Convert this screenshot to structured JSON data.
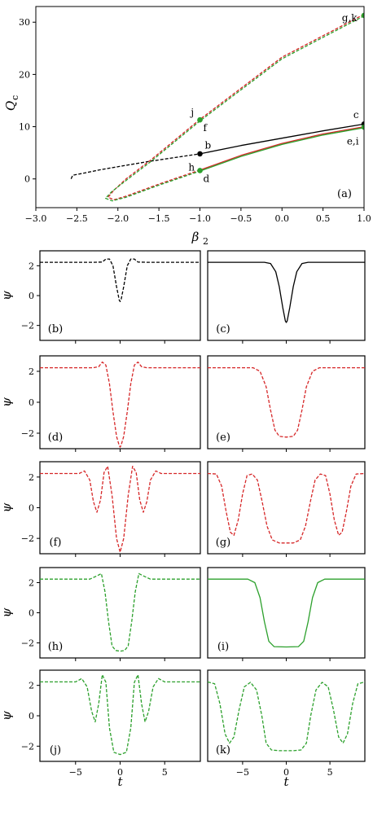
{
  "chart_data": [
    {
      "id": "a",
      "type": "line",
      "panel_label": "(a)",
      "xlabel": "β₂",
      "ylabel": "Q_c",
      "xlim": [
        -3.0,
        1.0
      ],
      "ylim": [
        -5.5,
        33
      ],
      "xticks": [
        "−3.0",
        "−2.5",
        "−2.0",
        "−1.5",
        "−1.0",
        "−0.5",
        "0.0",
        "0.5",
        "1.0"
      ],
      "yticks": [
        "0",
        "10",
        "20",
        "30"
      ],
      "series": [
        {
          "color": "#000000",
          "style": "dashed",
          "points": [
            [
              -2.57,
              0.0
            ],
            [
              -2.55,
              0.7
            ],
            [
              -2.45,
              1.0
            ],
            [
              -2.2,
              1.8
            ],
            [
              -1.9,
              2.6
            ],
            [
              -1.6,
              3.4
            ],
            [
              -1.3,
              4.1
            ],
            [
              -1.0,
              4.8
            ]
          ]
        },
        {
          "color": "#000000",
          "style": "solid",
          "points": [
            [
              -1.0,
              4.8
            ],
            [
              -0.5,
              6.4
            ],
            [
              0.0,
              7.8
            ],
            [
              0.5,
              9.2
            ],
            [
              1.0,
              10.5
            ]
          ]
        },
        {
          "color": "#d62728",
          "style": "dashed",
          "points": [
            [
              1.0,
              31.5
            ],
            [
              0.0,
              23.3
            ],
            [
              -1.0,
              11.4
            ],
            [
              -1.6,
              3.6
            ],
            [
              -1.9,
              0.0
            ],
            [
              -2.05,
              -2.2
            ],
            [
              -2.12,
              -3.5
            ],
            [
              -2.05,
              -4.0
            ],
            [
              -1.9,
              -3.3
            ],
            [
              -1.5,
              -1.0
            ],
            [
              -1.0,
              1.7
            ]
          ]
        },
        {
          "color": "#d62728",
          "style": "solid",
          "points": [
            [
              -1.0,
              1.7
            ],
            [
              -0.5,
              4.5
            ],
            [
              0.0,
              6.8
            ],
            [
              0.5,
              8.6
            ],
            [
              1.0,
              10.0
            ]
          ]
        },
        {
          "color": "#2ca02c",
          "style": "dashed",
          "points": [
            [
              1.0,
              31.2
            ],
            [
              0.0,
              23.0
            ],
            [
              -1.0,
              11.1
            ],
            [
              -1.6,
              3.3
            ],
            [
              -1.9,
              -0.3
            ],
            [
              -2.08,
              -2.5
            ],
            [
              -2.15,
              -3.7
            ],
            [
              -2.07,
              -4.2
            ],
            [
              -1.9,
              -3.5
            ],
            [
              -1.5,
              -1.2
            ],
            [
              -1.0,
              1.5
            ]
          ]
        },
        {
          "color": "#2ca02c",
          "style": "solid",
          "points": [
            [
              -1.0,
              1.5
            ],
            [
              -0.5,
              4.3
            ],
            [
              0.0,
              6.6
            ],
            [
              0.5,
              8.4
            ],
            [
              1.0,
              9.8
            ]
          ]
        }
      ],
      "markers": [
        {
          "x": -1.0,
          "y": 4.8,
          "color": "#000000"
        },
        {
          "x": 1.0,
          "y": 10.5,
          "color": "#000000"
        },
        {
          "x": -1.0,
          "y": 11.3,
          "color": "#2ca02c"
        },
        {
          "x": -1.0,
          "y": 1.6,
          "color": "#2ca02c"
        },
        {
          "x": 1.0,
          "y": 31.3,
          "color": "#2ca02c"
        },
        {
          "x": 1.0,
          "y": 9.9,
          "color": "#2ca02c"
        }
      ],
      "annotations": [
        {
          "text": "b",
          "x": -0.94,
          "y": 6.4
        },
        {
          "text": "c",
          "x": 0.87,
          "y": 12.3
        },
        {
          "text": "e,i",
          "x": 0.79,
          "y": 7.2
        },
        {
          "text": "g,k",
          "x": 0.73,
          "y": 30.8
        },
        {
          "text": "j",
          "x": -1.11,
          "y": 12.7
        },
        {
          "text": "f",
          "x": -0.96,
          "y": 9.8
        },
        {
          "text": "h",
          "x": -1.14,
          "y": 2.2
        },
        {
          "text": "d",
          "x": -0.96,
          "y": 0.0
        }
      ]
    },
    {
      "id": "b",
      "type": "line",
      "panel_label": "(b)",
      "ylabel": "ψ",
      "color": "#000000",
      "style": "dashed",
      "xlim": [
        -9,
        9
      ],
      "ylim": [
        -3,
        3
      ],
      "x": [
        -9,
        -3,
        -2,
        -1.6,
        -1.2,
        -0.8,
        -0.4,
        -0.1,
        0,
        0.1,
        0.4,
        0.8,
        1.2,
        1.6,
        2,
        3,
        9
      ],
      "values": [
        2.23,
        2.23,
        2.25,
        2.45,
        2.45,
        2.0,
        0.6,
        -0.3,
        -0.4,
        -0.3,
        0.6,
        2.0,
        2.45,
        2.45,
        2.25,
        2.23,
        2.23
      ]
    },
    {
      "id": "c",
      "type": "line",
      "panel_label": "(c)",
      "color": "#000000",
      "style": "solid",
      "xlim": [
        -9,
        9
      ],
      "ylim": [
        -3,
        3
      ],
      "x": [
        -9,
        -2.5,
        -1.8,
        -1.2,
        -0.8,
        -0.4,
        -0.1,
        0,
        0.1,
        0.4,
        0.8,
        1.2,
        1.8,
        2.5,
        9
      ],
      "values": [
        2.23,
        2.23,
        2.15,
        1.6,
        0.6,
        -0.8,
        -1.7,
        -1.8,
        -1.7,
        -0.8,
        0.6,
        1.6,
        2.15,
        2.23,
        2.23
      ]
    },
    {
      "id": "d",
      "type": "line",
      "panel_label": "(d)",
      "ylabel": "ψ",
      "color": "#d62728",
      "style": "dashed",
      "xlim": [
        -9,
        9
      ],
      "ylim": [
        -3,
        3
      ],
      "x": [
        -9,
        -3,
        -2.4,
        -2.0,
        -1.6,
        -1.2,
        -0.8,
        -0.4,
        -0.1,
        0,
        0.1,
        0.4,
        0.8,
        1.2,
        1.6,
        2.0,
        2.4,
        3,
        9
      ],
      "values": [
        2.23,
        2.23,
        2.3,
        2.6,
        2.4,
        1.2,
        -0.6,
        -2.2,
        -2.8,
        -2.9,
        -2.8,
        -2.2,
        -0.6,
        1.2,
        2.4,
        2.6,
        2.3,
        2.23,
        2.23
      ]
    },
    {
      "id": "e",
      "type": "line",
      "panel_label": "(e)",
      "color": "#d62728",
      "style": "dashed",
      "xlim": [
        -9,
        9
      ],
      "ylim": [
        -3,
        3
      ],
      "x": [
        -9,
        -3.8,
        -3.0,
        -2.3,
        -1.8,
        -1.3,
        -0.8,
        0,
        0.8,
        1.3,
        1.8,
        2.3,
        3.0,
        3.8,
        9
      ],
      "values": [
        2.23,
        2.23,
        2.0,
        1.0,
        -0.5,
        -1.8,
        -2.2,
        -2.25,
        -2.2,
        -1.8,
        -0.5,
        1.0,
        2.0,
        2.23,
        2.23
      ]
    },
    {
      "id": "f",
      "type": "line",
      "panel_label": "(f)",
      "ylabel": "ψ",
      "color": "#d62728",
      "style": "dashed",
      "xlim": [
        -9,
        9
      ],
      "ylim": [
        -3,
        3
      ],
      "x": [
        -9,
        -4.6,
        -4.0,
        -3.4,
        -3.0,
        -2.6,
        -2.2,
        -1.8,
        -1.4,
        -0.9,
        -0.4,
        0,
        0.4,
        0.9,
        1.4,
        1.8,
        2.2,
        2.6,
        3.0,
        3.4,
        4.0,
        4.6,
        9
      ],
      "values": [
        2.23,
        2.23,
        2.4,
        1.8,
        0.4,
        -0.3,
        0.5,
        2.3,
        2.7,
        0.8,
        -2.0,
        -2.9,
        -2.0,
        0.8,
        2.7,
        2.3,
        0.5,
        -0.3,
        0.4,
        1.8,
        2.4,
        2.23,
        2.23
      ]
    },
    {
      "id": "g",
      "type": "line",
      "panel_label": "(g)",
      "color": "#d62728",
      "style": "dashed",
      "xlim": [
        -9,
        9
      ],
      "ylim": [
        -3,
        3
      ],
      "x": [
        -9,
        -8.0,
        -7.4,
        -6.9,
        -6.4,
        -6.0,
        -5.5,
        -5.0,
        -4.5,
        -3.9,
        -3.3,
        -2.8,
        -2.2,
        -1.6,
        -0.8,
        0,
        0.8,
        1.6,
        2.2,
        2.8,
        3.3,
        3.9,
        4.5,
        5.0,
        5.5,
        6.0,
        6.4,
        6.9,
        7.4,
        8.0,
        9
      ],
      "values": [
        2.23,
        2.2,
        1.4,
        -0.2,
        -1.6,
        -1.8,
        -0.8,
        0.9,
        2.1,
        2.2,
        1.8,
        0.5,
        -1.2,
        -2.1,
        -2.3,
        -2.3,
        -2.3,
        -2.1,
        -1.2,
        0.5,
        1.8,
        2.2,
        2.1,
        0.9,
        -0.8,
        -1.8,
        -1.6,
        -0.2,
        1.4,
        2.2,
        2.23
      ]
    },
    {
      "id": "h",
      "type": "line",
      "panel_label": "(h)",
      "ylabel": "ψ",
      "color": "#2ca02c",
      "style": "dashed",
      "xlim": [
        -9,
        9
      ],
      "ylim": [
        -3,
        3
      ],
      "x": [
        -9,
        -3.4,
        -2.6,
        -2.1,
        -1.7,
        -1.3,
        -0.9,
        -0.5,
        0,
        0.5,
        0.9,
        1.3,
        1.7,
        2.1,
        2.6,
        3.4,
        9
      ],
      "values": [
        2.23,
        2.23,
        2.45,
        2.6,
        1.4,
        -0.6,
        -2.2,
        -2.5,
        -2.55,
        -2.5,
        -2.2,
        -0.6,
        1.4,
        2.6,
        2.45,
        2.23,
        2.23
      ]
    },
    {
      "id": "i",
      "type": "line",
      "panel_label": "(i)",
      "color": "#2ca02c",
      "style": "solid",
      "xlim": [
        -9,
        9
      ],
      "ylim": [
        -3,
        3
      ],
      "x": [
        -9,
        -4.4,
        -3.6,
        -3.0,
        -2.5,
        -2.0,
        -1.4,
        0,
        1.4,
        2.0,
        2.5,
        3.0,
        3.6,
        4.4,
        9
      ],
      "values": [
        2.23,
        2.23,
        2.0,
        1.0,
        -0.6,
        -1.9,
        -2.25,
        -2.27,
        -2.25,
        -1.9,
        -0.6,
        1.0,
        2.0,
        2.23,
        2.23
      ]
    },
    {
      "id": "j",
      "type": "line",
      "panel_label": "(j)",
      "ylabel": "ψ",
      "color": "#2ca02c",
      "style": "dashed",
      "xlim": [
        -9,
        9
      ],
      "ylim": [
        -3,
        3
      ],
      "x": [
        -9,
        -5.0,
        -4.3,
        -3.7,
        -3.2,
        -2.8,
        -2.4,
        -2.0,
        -1.6,
        -1.2,
        -0.7,
        0,
        0.7,
        1.2,
        1.6,
        2.0,
        2.4,
        2.8,
        3.2,
        3.7,
        4.3,
        5.0,
        9
      ],
      "values": [
        2.23,
        2.23,
        2.45,
        1.9,
        0.3,
        -0.4,
        0.8,
        2.7,
        2.2,
        -0.8,
        -2.4,
        -2.55,
        -2.4,
        -0.8,
        2.2,
        2.7,
        0.8,
        -0.4,
        0.3,
        1.9,
        2.45,
        2.23,
        2.23
      ]
    },
    {
      "id": "k",
      "type": "line",
      "panel_label": "(k)",
      "color": "#2ca02c",
      "style": "dashed",
      "xlim": [
        -9,
        9
      ],
      "ylim": [
        -3,
        3
      ],
      "x": [
        -9,
        -8.2,
        -7.6,
        -7.0,
        -6.5,
        -6.0,
        -5.4,
        -4.8,
        -4.1,
        -3.4,
        -2.8,
        -2.3,
        -1.7,
        -0.8,
        0,
        0.8,
        1.7,
        2.3,
        2.8,
        3.4,
        4.1,
        4.8,
        5.4,
        6.0,
        6.5,
        7.0,
        7.6,
        8.2,
        9
      ],
      "values": [
        2.23,
        2.1,
        0.8,
        -1.2,
        -1.8,
        -1.4,
        0.4,
        1.9,
        2.2,
        1.7,
        0.0,
        -1.8,
        -2.25,
        -2.3,
        -2.3,
        -2.3,
        -2.25,
        -1.8,
        0.0,
        1.7,
        2.2,
        1.9,
        0.4,
        -1.4,
        -1.8,
        -1.2,
        0.8,
        2.1,
        2.23
      ]
    }
  ],
  "shared_axes": {
    "psi_yticks": [
      "2",
      "0",
      "−2"
    ],
    "t_xticks": [
      "−5",
      "0",
      "5"
    ],
    "t_label": "t"
  }
}
